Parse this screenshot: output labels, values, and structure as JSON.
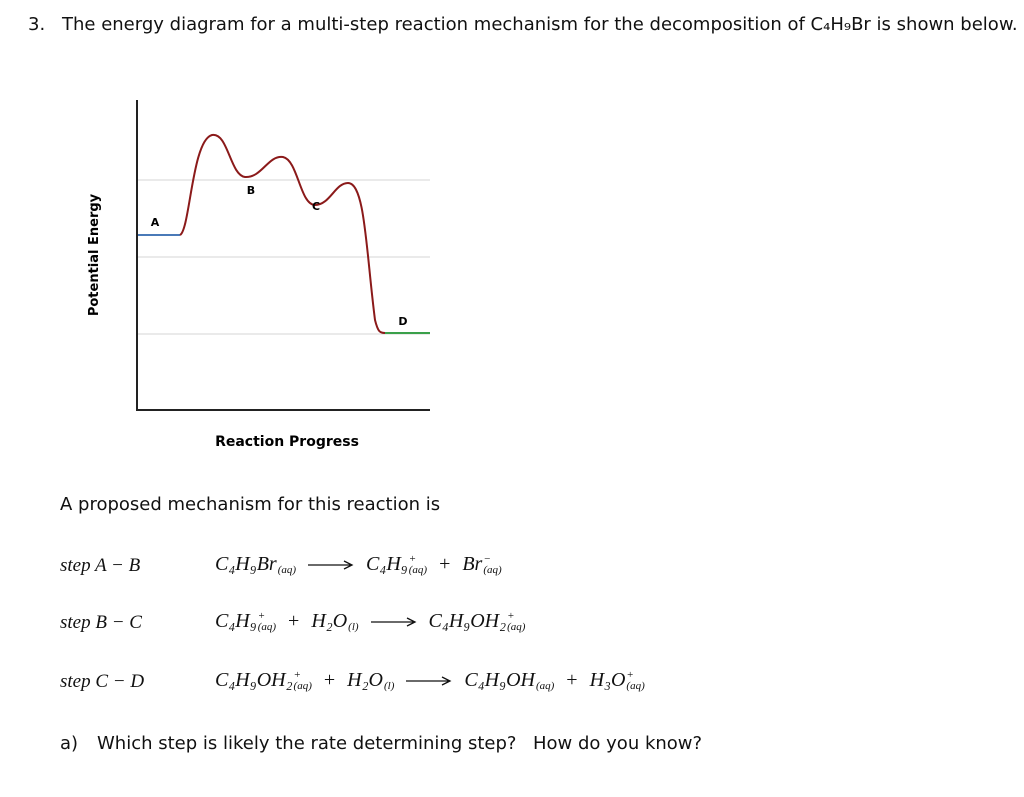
{
  "question": {
    "number": "3.",
    "text": "The energy diagram for a multi-step reaction mechanism for the decomposition of C₄H₉Br is shown below."
  },
  "diagram": {
    "y_label": "Potential Energy",
    "x_label": "Reaction Progress",
    "points": [
      "A",
      "B",
      "C",
      "D"
    ]
  },
  "intro": "A proposed mechanism for this reaction is",
  "steps": [
    {
      "label": "step A − B",
      "reactants": [
        {
          "formula": "C₄H₉Br",
          "state": "(aq)"
        }
      ],
      "products": [
        {
          "formula": "C₄H₉",
          "charge": "+",
          "state": "(aq)"
        },
        "+",
        {
          "formula": "Br",
          "charge": "−",
          "state": "(aq)"
        }
      ]
    },
    {
      "label": "step B − C",
      "reactants": [
        {
          "formula": "C₄H₉",
          "charge": "+",
          "state": "(aq)"
        },
        "+",
        {
          "formula": "H₂O",
          "state": "(l)"
        }
      ],
      "products": [
        {
          "formula": "C₄H₉OH₂",
          "charge": "+",
          "state": "(aq)"
        }
      ]
    },
    {
      "label": "step C − D",
      "reactants": [
        {
          "formula": "C₄H₉OH₂",
          "charge": "+",
          "state": "(aq)"
        },
        "+",
        {
          "formula": "H₂O",
          "state": "(l)"
        }
      ],
      "products": [
        {
          "formula": "C₄H₉OH",
          "state": "(aq)"
        },
        "+",
        {
          "formula": "H₃O",
          "charge": "+",
          "state": "(aq)"
        }
      ]
    }
  ],
  "part_a": {
    "letter": "a)",
    "question": "Which step is likely the rate determining step?",
    "follow_up": "How do you know?"
  }
}
